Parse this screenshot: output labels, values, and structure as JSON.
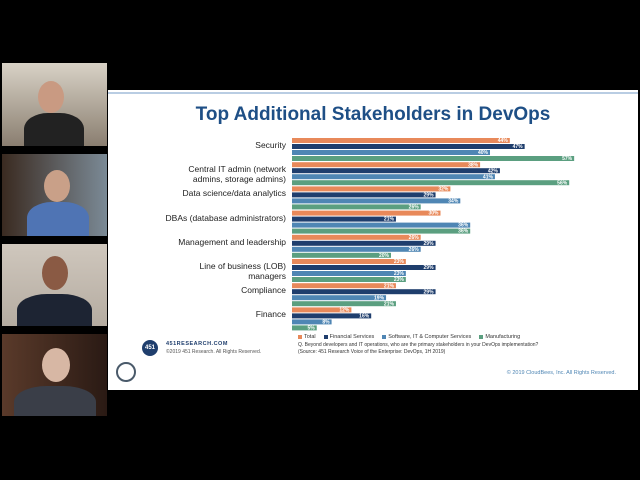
{
  "slide": {
    "title": "Top Additional Stakeholders in DevOps",
    "logo": "451",
    "site": "451RESEARCH.COM",
    "copyright": "©2019 451 Research. All Rights Reserved.",
    "question": "Q. Beyond developers and IT operations, who are the primary stakeholders in your DevOps implementation?",
    "source": "(Source: 451 Research Voice of the Enterprise: DevOps, 1H 2019)",
    "footer": "© 2019 CloudBees, Inc. All Rights Reserved."
  },
  "chart_data": {
    "type": "bar",
    "categories": [
      "Security",
      "Central IT admin (network admins, storage admins)",
      "Data science/data analytics",
      "DBAs (database administrators)",
      "Management and leadership",
      "Line of business (LOB) managers",
      "Compliance",
      "Finance"
    ],
    "series": [
      {
        "name": "Total",
        "color": "#e8895a",
        "values": [
          44,
          38,
          32,
          30,
          26,
          23,
          21,
          12
        ],
        "value_labels": [
          "44%",
          "38%",
          "32%",
          "30%",
          "26%",
          "23%",
          "21%",
          "12%"
        ]
      },
      {
        "name": "Financial Services",
        "color": "#1f3e6d",
        "values": [
          47,
          42,
          29,
          21,
          29,
          29,
          29,
          16
        ],
        "value_labels": [
          "47%",
          "42%",
          "29%",
          "21%",
          "29%",
          "29%",
          "29%",
          "16%"
        ]
      },
      {
        "name": "Software, IT & Computer Services",
        "color": "#4f86b4",
        "values": [
          40,
          41,
          34,
          36,
          26,
          23,
          19,
          8
        ],
        "value_labels": [
          "40%",
          "41%",
          "34%",
          "36%",
          "26%",
          "23%",
          "19%",
          "8%"
        ]
      },
      {
        "name": "Manufacturing",
        "color": "#5b9f80",
        "values": [
          57,
          56,
          26,
          36,
          20,
          23,
          21,
          5
        ],
        "value_labels": [
          "57%",
          "56%",
          "26%",
          "36%",
          "20%",
          "23%",
          "21%",
          "5%"
        ]
      }
    ]
  }
}
